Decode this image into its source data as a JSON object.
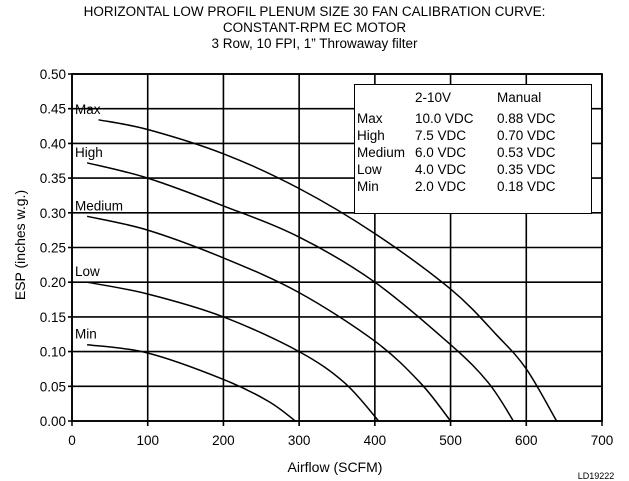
{
  "title_lines": [
    "HORIZONTAL LOW PROFIL PLENUM SIZE 30 FAN CALIBRATION CURVE:",
    "CONSTANT-RPM EC MOTOR",
    "3 Row, 10 FPI, 1” Throwaway filter"
  ],
  "figure_code": "LD19222",
  "speed_table": {
    "headers": [
      "",
      "2-10V",
      "Manual"
    ],
    "rows": [
      [
        "Max",
        "10.0 VDC",
        "0.88 VDC"
      ],
      [
        "High",
        "7.5 VDC",
        "0.70 VDC"
      ],
      [
        "Medium",
        "6.0 VDC",
        "0.53 VDC"
      ],
      [
        "Low",
        "4.0 VDC",
        "0.35 VDC"
      ],
      [
        "Min",
        "2.0 VDC",
        "0.18 VDC"
      ]
    ]
  },
  "chart_data": {
    "type": "line",
    "title": "HORIZONTAL LOW PROFIL PLENUM SIZE 30 FAN CALIBRATION CURVE: CONSTANT-RPM EC MOTOR 3 Row, 10 FPI, 1” Throwaway filter",
    "xlabel": "Airflow (SCFM)",
    "ylabel": "ESP (inches w.g.)",
    "xlim": [
      0,
      700
    ],
    "ylim": [
      0,
      0.5
    ],
    "xticks": [
      "0",
      "100",
      "200",
      "300",
      "400",
      "500",
      "600",
      "700"
    ],
    "yticks": [
      "0.00",
      "0.05",
      "0.10",
      "0.15",
      "0.20",
      "0.25",
      "0.30",
      "0.35",
      "0.40",
      "0.45",
      "0.50"
    ],
    "grid": true,
    "series": [
      {
        "name": "Max",
        "x": [
          35,
          100,
          200,
          300,
          400,
          500,
          560,
          600,
          640
        ],
        "y": [
          0.434,
          0.42,
          0.385,
          0.335,
          0.27,
          0.19,
          0.125,
          0.075,
          0.0
        ]
      },
      {
        "name": "High",
        "x": [
          20,
          100,
          200,
          300,
          400,
          500,
          550,
          583
        ],
        "y": [
          0.372,
          0.35,
          0.31,
          0.265,
          0.2,
          0.11,
          0.055,
          0.0
        ]
      },
      {
        "name": "Medium",
        "x": [
          20,
          100,
          200,
          300,
          400,
          460,
          500
        ],
        "y": [
          0.295,
          0.275,
          0.235,
          0.185,
          0.115,
          0.055,
          0.0
        ]
      },
      {
        "name": "Low",
        "x": [
          20,
          100,
          200,
          300,
          360,
          405
        ],
        "y": [
          0.2,
          0.183,
          0.15,
          0.1,
          0.055,
          0.0
        ]
      },
      {
        "name": "Min",
        "x": [
          20,
          100,
          200,
          260,
          295
        ],
        "y": [
          0.11,
          0.098,
          0.06,
          0.028,
          0.0
        ]
      }
    ]
  }
}
